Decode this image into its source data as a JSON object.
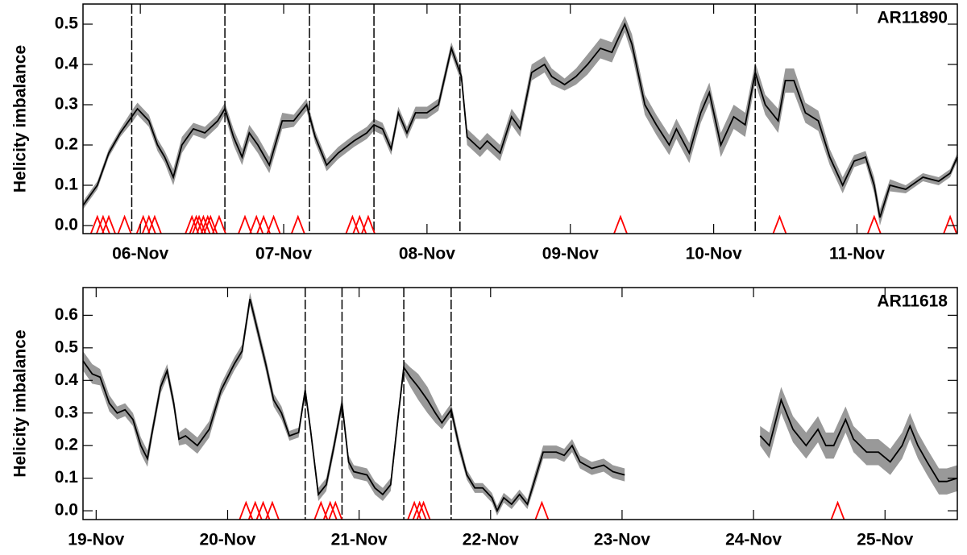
{
  "chart_data": [
    {
      "type": "line",
      "annotation": "AR11890",
      "ylabel": "Helicity imbalance",
      "color": "#000000",
      "band_color": "#999999",
      "flare_color": "#ff0000",
      "xlim": [
        5.6,
        11.7
      ],
      "ylim": [
        -0.02,
        0.55
      ],
      "xticks": [
        {
          "value": 6,
          "label": "06-Nov"
        },
        {
          "value": 7,
          "label": "07-Nov"
        },
        {
          "value": 8,
          "label": "08-Nov"
        },
        {
          "value": 9,
          "label": "09-Nov"
        },
        {
          "value": 10,
          "label": "10-Nov"
        },
        {
          "value": 11,
          "label": "11-Nov"
        }
      ],
      "yticks": [
        {
          "value": 0,
          "label": "0.0"
        },
        0.1,
        0.2,
        0.3,
        0.4,
        0.5
      ],
      "x": [
        5.6,
        5.7,
        5.78,
        5.86,
        5.94,
        5.98,
        6.06,
        6.12,
        6.17,
        6.23,
        6.29,
        6.37,
        6.45,
        6.54,
        6.59,
        6.65,
        6.71,
        6.76,
        6.82,
        6.9,
        6.99,
        7.07,
        7.16,
        7.22,
        7.3,
        7.38,
        7.49,
        7.58,
        7.63,
        7.69,
        7.75,
        7.8,
        7.86,
        7.92,
        8.0,
        8.08,
        8.17,
        8.24,
        8.28,
        8.37,
        8.42,
        8.51,
        8.59,
        8.65,
        8.73,
        8.82,
        8.87,
        8.96,
        9.04,
        9.12,
        9.21,
        9.29,
        9.38,
        9.43,
        9.52,
        9.6,
        9.69,
        9.74,
        9.83,
        9.91,
        9.97,
        10.05,
        10.14,
        10.22,
        10.29,
        10.36,
        10.45,
        10.5,
        10.56,
        10.64,
        10.73,
        10.81,
        10.9,
        10.98,
        11.06,
        11.12,
        11.16,
        11.23,
        11.34,
        11.46,
        11.57,
        11.65,
        11.7
      ],
      "values": [
        0.05,
        0.1,
        0.18,
        0.23,
        0.27,
        0.29,
        0.26,
        0.2,
        0.17,
        0.12,
        0.2,
        0.24,
        0.23,
        0.26,
        0.29,
        0.22,
        0.17,
        0.23,
        0.2,
        0.15,
        0.26,
        0.26,
        0.3,
        0.22,
        0.15,
        0.18,
        0.21,
        0.23,
        0.25,
        0.24,
        0.19,
        0.28,
        0.23,
        0.28,
        0.28,
        0.3,
        0.44,
        0.37,
        0.22,
        0.19,
        0.21,
        0.18,
        0.27,
        0.24,
        0.38,
        0.4,
        0.37,
        0.35,
        0.37,
        0.4,
        0.44,
        0.43,
        0.5,
        0.45,
        0.3,
        0.25,
        0.2,
        0.24,
        0.18,
        0.28,
        0.33,
        0.2,
        0.27,
        0.25,
        0.38,
        0.3,
        0.26,
        0.36,
        0.36,
        0.28,
        0.26,
        0.17,
        0.1,
        0.16,
        0.17,
        0.1,
        0.02,
        0.1,
        0.09,
        0.12,
        0.11,
        0.13,
        0.17
      ],
      "errors": [
        0.01,
        0.01,
        0.01,
        0.01,
        0.015,
        0.015,
        0.015,
        0.015,
        0.015,
        0.02,
        0.02,
        0.015,
        0.015,
        0.015,
        0.015,
        0.02,
        0.02,
        0.02,
        0.02,
        0.02,
        0.02,
        0.015,
        0.015,
        0.015,
        0.015,
        0.015,
        0.015,
        0.015,
        0.015,
        0.015,
        0.015,
        0.015,
        0.015,
        0.015,
        0.015,
        0.015,
        0.015,
        0.015,
        0.02,
        0.02,
        0.02,
        0.02,
        0.02,
        0.02,
        0.02,
        0.02,
        0.02,
        0.015,
        0.02,
        0.025,
        0.025,
        0.025,
        0.02,
        0.025,
        0.025,
        0.025,
        0.025,
        0.025,
        0.025,
        0.025,
        0.025,
        0.03,
        0.03,
        0.03,
        0.025,
        0.025,
        0.03,
        0.03,
        0.03,
        0.025,
        0.025,
        0.02,
        0.02,
        0.015,
        0.015,
        0.02,
        0.02,
        0.015,
        0.01,
        0.01,
        0.01,
        0.01,
        0.01
      ],
      "events": [
        5.94,
        6.59,
        7.18,
        7.63,
        8.23,
        10.29
      ],
      "flares": [
        5.7,
        5.74,
        5.78,
        5.89,
        6.02,
        6.06,
        6.1,
        6.36,
        6.39,
        6.41,
        6.44,
        6.47,
        6.49,
        6.55,
        6.73,
        6.81,
        6.86,
        6.93,
        7.1,
        7.48,
        7.53,
        7.59,
        9.35,
        10.46,
        11.12,
        11.65
      ]
    },
    {
      "type": "line",
      "annotation": "AR11618",
      "ylabel": "Helicity imbalance",
      "color": "#000000",
      "band_color": "#999999",
      "flare_color": "#ff0000",
      "xlim": [
        18.9,
        25.55
      ],
      "ylim": [
        -0.027,
        0.685
      ],
      "xticks": [
        {
          "value": 19,
          "label": "19-Nov"
        },
        {
          "value": 20,
          "label": "20-Nov"
        },
        {
          "value": 21,
          "label": "21-Nov"
        },
        {
          "value": 22,
          "label": "22-Nov"
        },
        {
          "value": 23,
          "label": "23-Nov"
        },
        {
          "value": 24,
          "label": "24-Nov"
        },
        {
          "value": 25,
          "label": "25-Nov"
        }
      ],
      "yticks": [
        {
          "value": 0,
          "label": "0.0"
        },
        0.1,
        0.2,
        0.3,
        0.4,
        0.5,
        0.6
      ],
      "x": [
        18.9,
        18.97,
        19.03,
        19.1,
        19.16,
        19.22,
        19.28,
        19.34,
        19.39,
        19.43,
        19.49,
        19.54,
        19.59,
        19.63,
        19.68,
        19.77,
        19.86,
        19.95,
        20.05,
        20.11,
        20.17,
        20.23,
        20.29,
        20.35,
        20.41,
        20.47,
        20.54,
        20.59,
        20.63,
        20.69,
        20.75,
        20.81,
        20.87,
        20.92,
        20.96,
        21.06,
        21.12,
        21.18,
        21.24,
        21.3,
        21.34,
        21.39,
        21.45,
        21.52,
        21.58,
        21.63,
        21.7,
        21.76,
        21.82,
        21.88,
        21.94,
        22.01,
        22.05,
        22.1,
        22.16,
        22.22,
        22.28,
        22.34,
        22.4,
        22.5,
        22.56,
        22.62,
        22.68,
        22.77,
        22.86,
        22.93,
        23.02,
        23.5,
        24.05,
        24.12,
        24.21,
        24.3,
        24.4,
        24.49,
        24.55,
        24.61,
        24.7,
        24.76,
        24.86,
        24.95,
        25.04,
        25.13,
        25.19,
        25.25,
        25.32,
        25.41,
        25.47,
        25.55
      ],
      "values": [
        0.46,
        0.42,
        0.41,
        0.33,
        0.3,
        0.31,
        0.28,
        0.2,
        0.16,
        0.25,
        0.38,
        0.43,
        0.33,
        0.22,
        0.23,
        0.2,
        0.25,
        0.37,
        0.45,
        0.49,
        0.65,
        0.55,
        0.45,
        0.34,
        0.3,
        0.23,
        0.24,
        0.37,
        0.25,
        0.05,
        0.08,
        0.2,
        0.33,
        0.15,
        0.12,
        0.11,
        0.07,
        0.05,
        0.08,
        0.3,
        0.44,
        0.41,
        0.38,
        0.34,
        0.3,
        0.27,
        0.31,
        0.2,
        0.11,
        0.07,
        0.07,
        0.04,
        0.0,
        0.04,
        0.02,
        0.05,
        0.02,
        0.1,
        0.18,
        0.18,
        0.17,
        0.2,
        0.15,
        0.13,
        0.14,
        0.12,
        0.11,
        null,
        0.23,
        0.2,
        0.34,
        0.25,
        0.2,
        0.25,
        0.2,
        0.2,
        0.28,
        0.22,
        0.18,
        0.18,
        0.15,
        0.2,
        0.26,
        0.2,
        0.15,
        0.09,
        0.09,
        0.1
      ],
      "errors": [
        0.03,
        0.03,
        0.025,
        0.025,
        0.02,
        0.02,
        0.02,
        0.025,
        0.025,
        0.02,
        0.02,
        0.02,
        0.02,
        0.02,
        0.025,
        0.025,
        0.025,
        0.02,
        0.02,
        0.02,
        0.02,
        0.02,
        0.02,
        0.02,
        0.02,
        0.015,
        0.015,
        0.015,
        0.015,
        0.02,
        0.02,
        0.02,
        0.02,
        0.02,
        0.02,
        0.02,
        0.02,
        0.02,
        0.02,
        0.02,
        0.02,
        0.03,
        0.04,
        0.04,
        0.03,
        0.02,
        0.02,
        0.02,
        0.015,
        0.015,
        0.015,
        0.015,
        0.015,
        0.015,
        0.015,
        0.015,
        0.015,
        0.02,
        0.02,
        0.02,
        0.02,
        0.02,
        0.02,
        0.02,
        0.02,
        0.02,
        0.02,
        null,
        0.03,
        0.04,
        0.04,
        0.04,
        0.04,
        0.04,
        0.04,
        0.04,
        0.04,
        0.04,
        0.04,
        0.04,
        0.04,
        0.04,
        0.04,
        0.04,
        0.04,
        0.04,
        0.04,
        0.04
      ],
      "events": [
        20.59,
        20.87,
        21.34,
        21.7
      ],
      "flares": [
        20.14,
        20.21,
        20.27,
        20.34,
        20.71,
        20.78,
        20.82,
        21.42,
        21.46,
        21.49,
        22.39,
        24.64
      ]
    }
  ]
}
